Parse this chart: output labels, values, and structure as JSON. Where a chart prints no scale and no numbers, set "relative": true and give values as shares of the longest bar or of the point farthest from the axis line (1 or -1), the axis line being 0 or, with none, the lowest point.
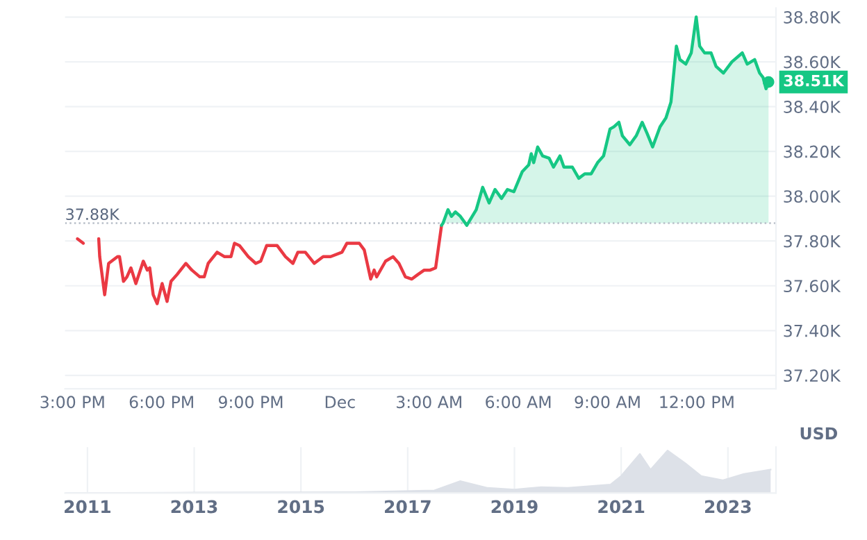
{
  "chart_data": [
    {
      "type": "area",
      "ylabel": "USD",
      "xlim": [
        "2023-11-30T14:45",
        "2023-12-01T14:40"
      ],
      "ylim": [
        37.14,
        38.84
      ],
      "xticks": [
        {
          "value": "2023-11-30T15:00",
          "label": "3:00 PM"
        },
        {
          "value": "2023-11-30T18:00",
          "label": "6:00 PM"
        },
        {
          "value": "2023-11-30T21:00",
          "label": "9:00 PM"
        },
        {
          "value": "2023-12-01T00:00",
          "label": "Dec"
        },
        {
          "value": "2023-12-01T03:00",
          "label": "3:00 AM"
        },
        {
          "value": "2023-12-01T06:00",
          "label": "6:00 AM"
        },
        {
          "value": "2023-12-01T09:00",
          "label": "9:00 AM"
        },
        {
          "value": "2023-12-01T12:00",
          "label": "12:00 PM"
        }
      ],
      "yticks": [
        {
          "value": 37.2,
          "label": "37.20K"
        },
        {
          "value": 37.4,
          "label": "37.40K"
        },
        {
          "value": 37.6,
          "label": "37.60K"
        },
        {
          "value": 37.8,
          "label": "37.80K"
        },
        {
          "value": 38.0,
          "label": "38.00K"
        },
        {
          "value": 38.2,
          "label": "38.20K"
        },
        {
          "value": 38.4,
          "label": "38.40K"
        },
        {
          "value": 38.6,
          "label": "38.60K"
        },
        {
          "value": 38.8,
          "label": "38.80K"
        }
      ],
      "grid": "y",
      "ref_lines": [
        {
          "axis": "y",
          "value": 37.88,
          "label": "37.88K",
          "color": "#b8bec8",
          "line_style": "dotted"
        }
      ],
      "annotations": [
        {
          "text": "38.51K",
          "x": "2023-12-01T14:25",
          "y": 38.51
        }
      ],
      "series": [
        {
          "type": "line",
          "color": "#ea3943",
          "x": [
            "2023-11-30T15:10",
            "2023-11-30T15:22"
          ],
          "values": [
            37.81,
            37.79
          ]
        },
        {
          "type": "line",
          "color": "#ea3943",
          "x": [
            "2023-11-30T15:53",
            "2023-11-30T15:55",
            "2023-11-30T16:05",
            "2023-11-30T16:13",
            "2023-11-30T16:31",
            "2023-11-30T16:35",
            "2023-11-30T16:43",
            "2023-11-30T16:50",
            "2023-11-30T16:58",
            "2023-11-30T17:08",
            "2023-11-30T17:23",
            "2023-11-30T17:31",
            "2023-11-30T17:36",
            "2023-11-30T17:43",
            "2023-11-30T17:51",
            "2023-11-30T18:01",
            "2023-11-30T18:11",
            "2023-11-30T18:19",
            "2023-11-30T18:31",
            "2023-11-30T18:49",
            "2023-11-30T19:01",
            "2023-11-30T19:17",
            "2023-11-30T19:26",
            "2023-11-30T19:34",
            "2023-11-30T19:52",
            "2023-11-30T20:07",
            "2023-11-30T20:20",
            "2023-11-30T20:27",
            "2023-11-30T20:37",
            "2023-11-30T20:55",
            "2023-11-30T21:10",
            "2023-11-30T21:20",
            "2023-11-30T21:32",
            "2023-11-30T21:53",
            "2023-11-30T22:10",
            "2023-11-30T22:25",
            "2023-11-30T22:35",
            "2023-11-30T22:50",
            "2023-11-30T23:08",
            "2023-11-30T23:26",
            "2023-11-30T23:41",
            "2023-12-01T00:04",
            "2023-12-01T00:14",
            "2023-12-01T00:24",
            "2023-12-01T00:39",
            "2023-12-01T00:49",
            "2023-12-01T01:02",
            "2023-12-01T01:09",
            "2023-12-01T01:14",
            "2023-12-01T01:32",
            "2023-12-01T01:47",
            "2023-12-01T01:59",
            "2023-12-01T02:12",
            "2023-12-01T02:25",
            "2023-12-01T02:37",
            "2023-12-01T02:50",
            "2023-12-01T03:02",
            "2023-12-01T03:13",
            "2023-12-01T03:25"
          ],
          "values": [
            37.81,
            37.73,
            37.56,
            37.7,
            37.73,
            37.73,
            37.62,
            37.64,
            37.68,
            37.61,
            37.71,
            37.67,
            37.68,
            37.56,
            37.52,
            37.61,
            37.53,
            37.62,
            37.65,
            37.7,
            37.67,
            37.64,
            37.64,
            37.7,
            37.75,
            37.73,
            37.73,
            37.79,
            37.78,
            37.73,
            37.7,
            37.71,
            37.78,
            37.78,
            37.73,
            37.7,
            37.75,
            37.75,
            37.7,
            37.73,
            37.73,
            37.75,
            37.79,
            37.79,
            37.79,
            37.76,
            37.63,
            37.67,
            37.64,
            37.71,
            37.73,
            37.7,
            37.64,
            37.63,
            37.65,
            37.67,
            37.67,
            37.68,
            37.87
          ]
        },
        {
          "color": "#16c784",
          "x": [
            "2023-12-01T03:25",
            "2023-12-01T03:28",
            "2023-12-01T03:38",
            "2023-12-01T03:45",
            "2023-12-01T03:53",
            "2023-12-01T04:03",
            "2023-12-01T04:16",
            "2023-12-01T04:35",
            "2023-12-01T04:48",
            "2023-12-01T05:01",
            "2023-12-01T05:13",
            "2023-12-01T05:26",
            "2023-12-01T05:38",
            "2023-12-01T05:51",
            "2023-12-01T06:08",
            "2023-12-01T06:21",
            "2023-12-01T06:26",
            "2023-12-01T06:31",
            "2023-12-01T06:39",
            "2023-12-01T06:49",
            "2023-12-01T07:02",
            "2023-12-01T07:11",
            "2023-12-01T07:24",
            "2023-12-01T07:32",
            "2023-12-01T07:49",
            "2023-12-01T08:02",
            "2023-12-01T08:14",
            "2023-12-01T08:27",
            "2023-12-01T08:40",
            "2023-12-01T08:52",
            "2023-12-01T09:05",
            "2023-12-01T09:13",
            "2023-12-01T09:23",
            "2023-12-01T09:30",
            "2023-12-01T09:45",
            "2023-12-01T09:58",
            "2023-12-01T10:10",
            "2023-12-01T10:20",
            "2023-12-01T10:31",
            "2023-12-01T10:46",
            "2023-12-01T10:58",
            "2023-12-01T11:08",
            "2023-12-01T11:19",
            "2023-12-01T11:26",
            "2023-12-01T11:38",
            "2023-12-01T11:49",
            "2023-12-01T11:59",
            "2023-12-01T12:06",
            "2023-12-01T12:16",
            "2023-12-01T12:29",
            "2023-12-01T12:39",
            "2023-12-01T12:54",
            "2023-12-01T13:11",
            "2023-12-01T13:32",
            "2023-12-01T13:42",
            "2023-12-01T13:57",
            "2023-12-01T14:07",
            "2023-12-01T14:14",
            "2023-12-01T14:20",
            "2023-12-01T14:25"
          ],
          "values": [
            37.87,
            37.88,
            37.94,
            37.91,
            37.93,
            37.91,
            37.87,
            37.94,
            38.04,
            37.97,
            38.03,
            37.99,
            38.03,
            38.02,
            38.11,
            38.14,
            38.19,
            38.15,
            38.22,
            38.18,
            38.17,
            38.13,
            38.18,
            38.13,
            38.13,
            38.08,
            38.1,
            38.1,
            38.15,
            38.18,
            38.3,
            38.31,
            38.33,
            38.27,
            38.23,
            38.27,
            38.33,
            38.28,
            38.22,
            38.31,
            38.35,
            38.42,
            38.67,
            38.61,
            38.59,
            38.64,
            38.8,
            38.67,
            38.64,
            38.64,
            38.58,
            38.55,
            38.6,
            38.64,
            38.59,
            38.61,
            38.55,
            38.53,
            38.48,
            38.51
          ]
        }
      ]
    },
    {
      "type": "area",
      "relative": true,
      "grid": "x",
      "tick_labels": "x",
      "xlim": [
        2010.58,
        2023.9
      ],
      "xticks": [
        2011,
        2013,
        2015,
        2017,
        2019,
        2021,
        2023
      ],
      "series": [
        {
          "color": "#dde1e8",
          "x": [
            2010.58,
            2013,
            2016,
            2017.5,
            2017.98,
            2018.5,
            2019,
            2019.5,
            2020,
            2020.8,
            2021.0,
            2021.35,
            2021.55,
            2021.87,
            2022.2,
            2022.5,
            2022.9,
            2023.3,
            2023.8
          ],
          "values": [
            0,
            0.01,
            0.02,
            0.06,
            0.28,
            0.12,
            0.08,
            0.14,
            0.12,
            0.2,
            0.4,
            0.92,
            0.55,
            1,
            0.7,
            0.4,
            0.3,
            0.45,
            0.55
          ]
        }
      ]
    }
  ]
}
